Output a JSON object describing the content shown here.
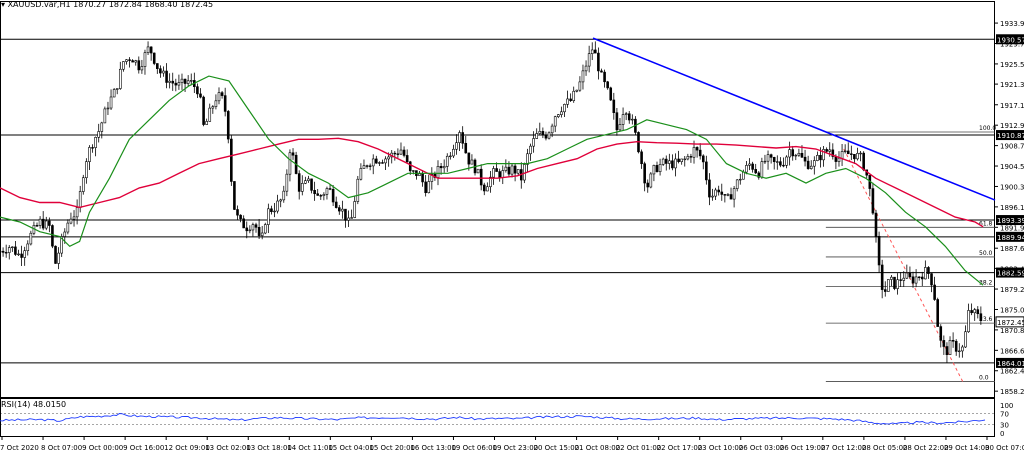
{
  "header": {
    "symbol_label": "XAUUSD.var,H1",
    "ohlc": "1870.27 1872.84 1868.40 1872.45"
  },
  "rsi_header": {
    "label": "RSI(14) 48.0150"
  },
  "colors": {
    "trendline": "#0000ff",
    "ma_slow": "#e0003a",
    "ma_fast": "#1a8f1a",
    "fib_line": "#ff5555",
    "rsi_line": "#1f3cff",
    "candle": "#000000",
    "level_line": "#000000"
  },
  "chart_data": {
    "type": "line",
    "price_axis": {
      "range": [
        1857.0,
        1937.0
      ],
      "ticks": [
        "1933.90",
        "1929.70",
        "1925.50",
        "1921.35",
        "1917.10",
        "1912.90",
        "1908.70",
        "1904.50",
        "1900.30",
        "1896.10",
        "1891.90",
        "1887.60",
        "1883.45",
        "1879.20",
        "1875.00",
        "1870.80",
        "1866.60",
        "1862.40",
        "1858.20"
      ]
    },
    "time_axis": {
      "ticks": [
        "7 Oct 2020",
        "8 Oct 07:00",
        "9 Oct 00:00",
        "9 Oct 16:00",
        "12 Oct 09:00",
        "13 Oct 02:00",
        "13 Oct 18:00",
        "14 Oct 11:00",
        "15 Oct 04:00",
        "15 Oct 20:00",
        "16 Oct 13:00",
        "19 Oct 06:00",
        "19 Oct 23:00",
        "20 Oct 15:00",
        "21 Oct 08:00",
        "22 Oct 01:00",
        "22 Oct 17:00",
        "23 Oct 10:00",
        "26 Oct 03:00",
        "26 Oct 19:00",
        "27 Oct 12:00",
        "28 Oct 05:00",
        "28 Oct 22:00",
        "29 Oct 14:00",
        "30 Oct 07:00"
      ]
    },
    "levels": [
      {
        "price": 1930.57,
        "label": "1930.57"
      },
      {
        "price": 1910.87,
        "label": "1910.87"
      },
      {
        "price": 1893.39,
        "label": "1893.39"
      },
      {
        "price": 1889.94,
        "label": "1889.94"
      },
      {
        "price": 1882.59,
        "label": "1882.59"
      },
      {
        "price": 1864.01,
        "label": "1864.01"
      }
    ],
    "current_price": {
      "price": 1872.45,
      "label": "1872.45"
    },
    "fibonacci": [
      {
        "label": "100.0",
        "price": 1911.5
      },
      {
        "label": "61.8",
        "price": 1891.9
      },
      {
        "label": "50.0",
        "price": 1885.8
      },
      {
        "label": "38.2",
        "price": 1879.7
      },
      {
        "label": "23.6",
        "price": 1872.2
      },
      {
        "label": "0.0",
        "price": 1860.2
      }
    ],
    "trendline": {
      "from": [
        1930.8,
        0.58
      ],
      "to": [
        1897.5,
        1.0
      ]
    },
    "close_path": [
      [
        0,
        1887
      ],
      [
        10,
        1888
      ],
      [
        20,
        1886
      ],
      [
        30,
        1890
      ],
      [
        40,
        1893
      ],
      [
        50,
        1892
      ],
      [
        55,
        1884
      ],
      [
        62,
        1889
      ],
      [
        70,
        1894
      ],
      [
        78,
        1895
      ],
      [
        85,
        1905
      ],
      [
        92,
        1909
      ],
      [
        100,
        1912
      ],
      [
        108,
        1917
      ],
      [
        116,
        1920
      ],
      [
        124,
        1926
      ],
      [
        132,
        1927
      ],
      [
        140,
        1925
      ],
      [
        150,
        1929
      ],
      [
        160,
        1924
      ],
      [
        170,
        1922
      ],
      [
        180,
        1921
      ],
      [
        190,
        1922
      ],
      [
        200,
        1920
      ],
      [
        205,
        1912
      ],
      [
        210,
        1915
      ],
      [
        218,
        1919
      ],
      [
        225,
        1918
      ],
      [
        230,
        1910
      ],
      [
        234,
        1897
      ],
      [
        240,
        1893
      ],
      [
        248,
        1892
      ],
      [
        256,
        1893
      ],
      [
        262,
        1888
      ],
      [
        268,
        1895
      ],
      [
        276,
        1896
      ],
      [
        285,
        1898
      ],
      [
        292,
        1909
      ],
      [
        300,
        1900
      ],
      [
        310,
        1901
      ],
      [
        320,
        1898
      ],
      [
        330,
        1900
      ],
      [
        338,
        1897
      ],
      [
        345,
        1895
      ],
      [
        352,
        1892
      ],
      [
        360,
        1902
      ],
      [
        368,
        1905
      ],
      [
        376,
        1906
      ],
      [
        386,
        1906
      ],
      [
        396,
        1907
      ],
      [
        404,
        1908
      ],
      [
        412,
        1903
      ],
      [
        420,
        1903
      ],
      [
        428,
        1900
      ],
      [
        438,
        1903
      ],
      [
        446,
        1905
      ],
      [
        454,
        1908
      ],
      [
        462,
        1912
      ],
      [
        470,
        1906
      ],
      [
        478,
        1904
      ],
      [
        486,
        1900
      ],
      [
        496,
        1903
      ],
      [
        506,
        1903
      ],
      [
        516,
        1904
      ],
      [
        524,
        1902
      ],
      [
        532,
        1908
      ],
      [
        540,
        1911
      ],
      [
        550,
        1911
      ],
      [
        558,
        1915
      ],
      [
        566,
        1917
      ],
      [
        574,
        1918
      ],
      [
        582,
        1921
      ],
      [
        590,
        1926
      ],
      [
        596,
        1929
      ],
      [
        604,
        1923
      ],
      [
        612,
        1919
      ],
      [
        620,
        1912
      ],
      [
        628,
        1917
      ],
      [
        636,
        1913
      ],
      [
        642,
        1908
      ],
      [
        650,
        1900
      ],
      [
        658,
        1904
      ],
      [
        666,
        1905
      ],
      [
        674,
        1905
      ],
      [
        682,
        1905
      ],
      [
        690,
        1906
      ],
      [
        698,
        1908
      ],
      [
        706,
        1906
      ],
      [
        714,
        1898
      ],
      [
        722,
        1900
      ],
      [
        730,
        1897
      ],
      [
        738,
        1900
      ],
      [
        746,
        1903
      ],
      [
        754,
        1905
      ],
      [
        762,
        1903
      ],
      [
        770,
        1906
      ],
      [
        778,
        1905
      ],
      [
        786,
        1905
      ],
      [
        794,
        1908
      ],
      [
        802,
        1907
      ],
      [
        810,
        1905
      ],
      [
        818,
        1905
      ],
      [
        826,
        1907
      ],
      [
        834,
        1908
      ],
      [
        842,
        1906
      ],
      [
        850,
        1907
      ],
      [
        858,
        1907
      ],
      [
        866,
        1906
      ],
      [
        872,
        1902
      ],
      [
        878,
        1895
      ],
      [
        882,
        1885
      ],
      [
        888,
        1878
      ],
      [
        894,
        1881
      ],
      [
        900,
        1880
      ],
      [
        908,
        1882
      ],
      [
        916,
        1881
      ],
      [
        924,
        1882
      ],
      [
        932,
        1883
      ],
      [
        938,
        1880
      ],
      [
        944,
        1869
      ],
      [
        950,
        1866
      ],
      [
        956,
        1868
      ],
      [
        962,
        1867
      ],
      [
        968,
        1867
      ],
      [
        974,
        1875
      ],
      [
        980,
        1874
      ],
      [
        986,
        1873
      ],
      [
        990,
        1872.45
      ]
    ],
    "ma_slow": [
      [
        0,
        1900
      ],
      [
        20,
        1898
      ],
      [
        40,
        1897
      ],
      [
        60,
        1897
      ],
      [
        80,
        1896
      ],
      [
        100,
        1897
      ],
      [
        120,
        1898
      ],
      [
        140,
        1900
      ],
      [
        160,
        1901
      ],
      [
        180,
        1903
      ],
      [
        200,
        1905
      ],
      [
        220,
        1906
      ],
      [
        240,
        1907
      ],
      [
        260,
        1908
      ],
      [
        280,
        1909
      ],
      [
        300,
        1910
      ],
      [
        320,
        1910
      ],
      [
        340,
        1910.2
      ],
      [
        360,
        1909.5
      ],
      [
        380,
        1908
      ],
      [
        400,
        1906
      ],
      [
        420,
        1904
      ],
      [
        440,
        1902
      ],
      [
        460,
        1902
      ],
      [
        480,
        1902
      ],
      [
        500,
        1902
      ],
      [
        520,
        1902.5
      ],
      [
        540,
        1904
      ],
      [
        560,
        1905
      ],
      [
        580,
        1906
      ],
      [
        600,
        1908
      ],
      [
        620,
        1909
      ],
      [
        640,
        1909.5
      ],
      [
        660,
        1909.3
      ],
      [
        680,
        1909.2
      ],
      [
        700,
        1909
      ],
      [
        720,
        1909
      ],
      [
        740,
        1908.8
      ],
      [
        760,
        1908.5
      ],
      [
        780,
        1908.2
      ],
      [
        800,
        1908.5
      ],
      [
        820,
        1908
      ],
      [
        840,
        1906.5
      ],
      [
        860,
        1905
      ],
      [
        880,
        1902
      ],
      [
        900,
        1900
      ],
      [
        920,
        1898
      ],
      [
        940,
        1896
      ],
      [
        960,
        1894
      ],
      [
        980,
        1893
      ],
      [
        988,
        1892
      ]
    ],
    "ma_fast": [
      [
        0,
        1894
      ],
      [
        20,
        1893
      ],
      [
        40,
        1891
      ],
      [
        60,
        1890
      ],
      [
        70,
        1888
      ],
      [
        80,
        1889
      ],
      [
        90,
        1895
      ],
      [
        110,
        1902
      ],
      [
        130,
        1910
      ],
      [
        150,
        1914
      ],
      [
        170,
        1918
      ],
      [
        190,
        1921
      ],
      [
        210,
        1923
      ],
      [
        230,
        1922
      ],
      [
        250,
        1916
      ],
      [
        270,
        1910
      ],
      [
        290,
        1906
      ],
      [
        310,
        1903
      ],
      [
        330,
        1901
      ],
      [
        350,
        1898
      ],
      [
        370,
        1899
      ],
      [
        390,
        1901
      ],
      [
        410,
        1903
      ],
      [
        430,
        1903
      ],
      [
        450,
        1903
      ],
      [
        470,
        1904
      ],
      [
        490,
        1905
      ],
      [
        510,
        1905
      ],
      [
        530,
        1905
      ],
      [
        550,
        1906
      ],
      [
        570,
        1908
      ],
      [
        590,
        1910
      ],
      [
        610,
        1911
      ],
      [
        630,
        1912
      ],
      [
        650,
        1914
      ],
      [
        670,
        1913
      ],
      [
        690,
        1912
      ],
      [
        710,
        1910
      ],
      [
        730,
        1905
      ],
      [
        750,
        1903
      ],
      [
        770,
        1902
      ],
      [
        790,
        1903
      ],
      [
        810,
        1901
      ],
      [
        830,
        1903
      ],
      [
        850,
        1904
      ],
      [
        870,
        1902
      ],
      [
        890,
        1899
      ],
      [
        910,
        1895
      ],
      [
        930,
        1892
      ],
      [
        950,
        1888
      ],
      [
        970,
        1883
      ],
      [
        988,
        1880
      ]
    ],
    "rsi": {
      "label": "RSI(14) 48.0150",
      "value": 48.015,
      "range": [
        0,
        100
      ],
      "ticks": [
        "100",
        "70",
        "30",
        "0"
      ],
      "levels": [
        70,
        30
      ],
      "path": [
        [
          0,
          45
        ],
        [
          20,
          47
        ],
        [
          40,
          48
        ],
        [
          60,
          44
        ],
        [
          80,
          58
        ],
        [
          100,
          60
        ],
        [
          120,
          66
        ],
        [
          140,
          60
        ],
        [
          160,
          58
        ],
        [
          180,
          56
        ],
        [
          200,
          54
        ],
        [
          220,
          50
        ],
        [
          240,
          46
        ],
        [
          260,
          52
        ],
        [
          280,
          55
        ],
        [
          300,
          52
        ],
        [
          320,
          50
        ],
        [
          340,
          48
        ],
        [
          360,
          54
        ],
        [
          380,
          55
        ],
        [
          400,
          56
        ],
        [
          420,
          52
        ],
        [
          440,
          50
        ],
        [
          460,
          56
        ],
        [
          480,
          50
        ],
        [
          500,
          52
        ],
        [
          520,
          51
        ],
        [
          540,
          56
        ],
        [
          560,
          58
        ],
        [
          580,
          60
        ],
        [
          600,
          57
        ],
        [
          620,
          52
        ],
        [
          640,
          50
        ],
        [
          660,
          51
        ],
        [
          680,
          52
        ],
        [
          700,
          54
        ],
        [
          720,
          48
        ],
        [
          740,
          50
        ],
        [
          760,
          52
        ],
        [
          780,
          53
        ],
        [
          800,
          54
        ],
        [
          820,
          52
        ],
        [
          840,
          50
        ],
        [
          860,
          45
        ],
        [
          880,
          36
        ],
        [
          900,
          32
        ],
        [
          920,
          38
        ],
        [
          940,
          36
        ],
        [
          960,
          38
        ],
        [
          980,
          44
        ],
        [
          990,
          48
        ]
      ]
    }
  }
}
